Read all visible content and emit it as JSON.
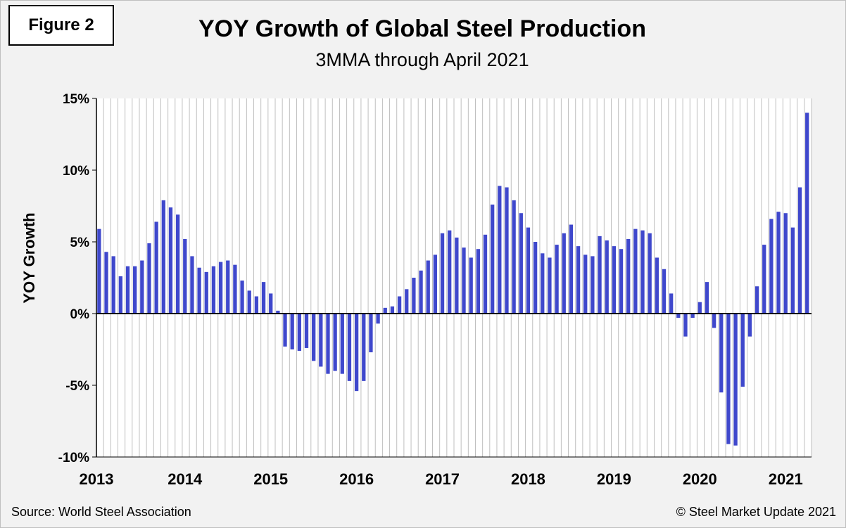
{
  "figure_label": "Figure 2",
  "title": "YOY Growth of Global Steel Production",
  "subtitle": "3MMA through April 2021",
  "ylabel": "YOY Growth",
  "source": "Source: World Steel Association",
  "copyright": "© Steel Market Update 2021",
  "colors": {
    "bar": "#3f48cc",
    "background": "#f2f2f2",
    "zero_line": "#000000",
    "grid": "#bfbfbf"
  },
  "chart_data": {
    "type": "bar",
    "title": "YOY Growth of Global Steel Production",
    "subtitle": "3MMA through April 2021",
    "ylabel": "YOY Growth",
    "xlabel": "",
    "ylim": [
      -10,
      15
    ],
    "yticks": [
      -10,
      -5,
      0,
      5,
      10,
      15
    ],
    "ytick_labels": [
      "-10%",
      "-5%",
      "0%",
      "5%",
      "10%",
      "15%"
    ],
    "x_tick_labels": [
      "2013",
      "2014",
      "2015",
      "2016",
      "2017",
      "2018",
      "2019",
      "2020",
      "2021"
    ],
    "x_start": "Jan 2013",
    "x_end": "Apr 2021",
    "grid": "vertical gridlines per month",
    "series": [
      {
        "values": [
          5.9,
          4.3,
          4.0,
          2.6,
          3.3,
          3.3,
          3.7,
          4.9,
          6.4,
          7.9,
          7.4,
          6.9,
          5.2,
          4.0,
          3.2,
          2.9,
          3.3,
          3.6,
          3.7,
          3.4,
          2.3,
          1.6,
          1.2,
          2.2,
          1.4,
          0.2,
          -2.3,
          -2.5,
          -2.6,
          -2.4,
          -3.3,
          -3.7,
          -4.2,
          -4.0,
          -4.2,
          -4.7,
          -5.4,
          -4.7,
          -2.7,
          -0.7,
          0.4,
          0.5,
          1.2,
          1.7,
          2.5,
          3.0,
          3.7,
          4.1,
          5.6,
          5.8,
          5.3,
          4.6,
          3.9,
          4.5,
          5.5,
          7.6,
          8.9,
          8.8,
          7.9,
          7.0,
          6.0,
          5.0,
          4.2,
          3.9,
          4.8,
          5.6,
          6.2,
          4.7,
          4.1,
          4.0,
          5.4,
          5.1,
          4.7,
          4.5,
          5.2,
          5.9,
          5.8,
          5.6,
          3.9,
          3.1,
          1.4,
          -0.3,
          -1.6,
          -0.3,
          0.8,
          2.2,
          -1.0,
          -5.5,
          -9.1,
          -9.2,
          -5.1,
          -1.6,
          1.9,
          4.8,
          6.6,
          7.1,
          7.0,
          6.0,
          8.8,
          14.0
        ]
      }
    ]
  }
}
